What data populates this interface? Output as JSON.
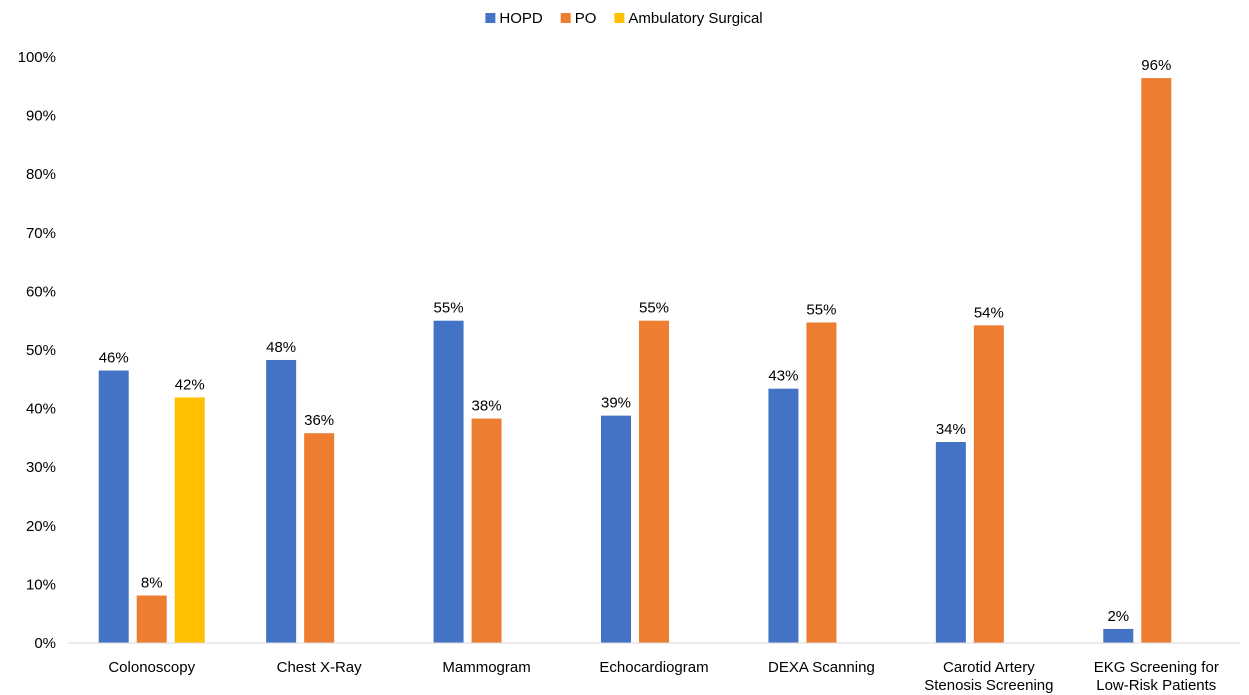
{
  "chart_data": {
    "type": "bar",
    "title": "",
    "xlabel": "",
    "ylabel": "",
    "ylim": [
      0,
      100
    ],
    "yticks": [
      0,
      10,
      20,
      30,
      40,
      50,
      60,
      70,
      80,
      90,
      100
    ],
    "ytick_format": "{v}%",
    "legend_position": "top-center",
    "grid": false,
    "categories": [
      [
        "Colonoscopy"
      ],
      [
        "Chest X-Ray"
      ],
      [
        "Mammogram"
      ],
      [
        "Echocardiogram"
      ],
      [
        "DEXA Scanning"
      ],
      [
        "Carotid Artery",
        "Stenosis Screening"
      ],
      [
        "EKG Screening for",
        "Low-Risk Patients"
      ]
    ],
    "series": [
      {
        "name": "HOPD",
        "color": "#4472C4",
        "values": [
          46.5,
          48.3,
          55.0,
          38.8,
          43.4,
          34.3,
          2.4
        ],
        "labels": [
          "46%",
          "48%",
          "55%",
          "39%",
          "43%",
          "34%",
          "2%"
        ]
      },
      {
        "name": "PO",
        "color": "#ED7D31",
        "values": [
          8.1,
          35.8,
          38.3,
          55.0,
          54.7,
          54.2,
          96.4
        ],
        "labels": [
          "8%",
          "36%",
          "38%",
          "55%",
          "55%",
          "54%",
          "96%"
        ]
      },
      {
        "name": "Ambulatory Surgical",
        "color": "#FFC000",
        "values": [
          41.9,
          null,
          null,
          null,
          null,
          null,
          null
        ],
        "labels": [
          "42%",
          "",
          "",
          "",
          "",
          "",
          ""
        ]
      }
    ]
  }
}
